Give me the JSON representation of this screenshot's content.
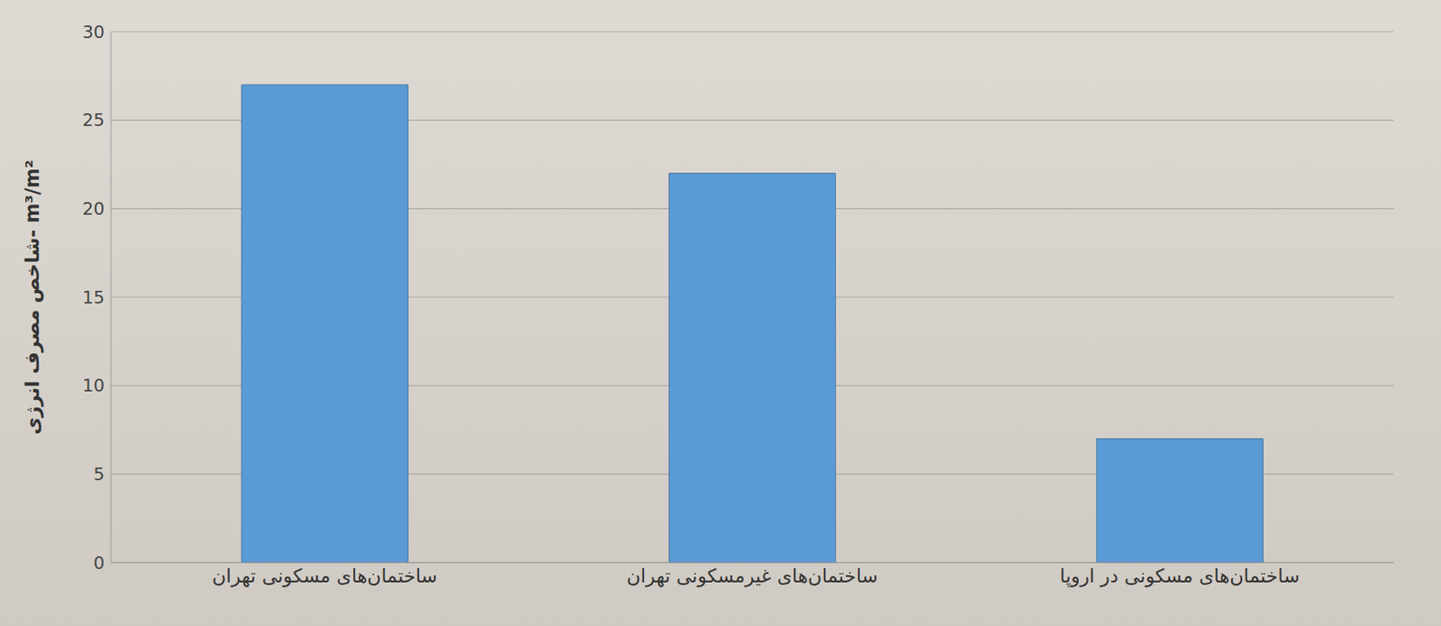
{
  "chart_data": {
    "type": "bar",
    "y_label": "شاخص مصرف انرژی- m³/m²",
    "categories": [
      "ساختمان‌های مسکونی تهران",
      "ساختمان‌های غیرمسکونی تهران",
      "ساختمان‌های مسکونی در اروپا"
    ],
    "values": [
      27,
      22,
      7
    ],
    "color": "#5b9bd5",
    "ylim": [
      0,
      30
    ],
    "yticks": [
      0,
      5,
      10,
      15,
      20,
      25,
      30
    ],
    "grid": true
  }
}
